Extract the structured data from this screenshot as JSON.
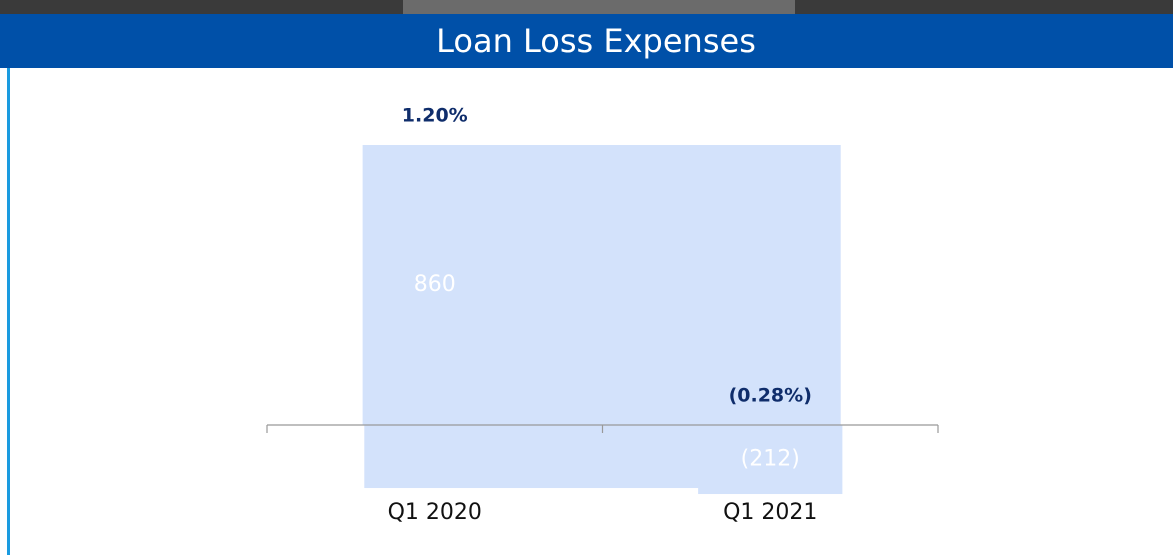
{
  "chart_data": {
    "type": "bar",
    "title": "Loan Loss Expenses",
    "categories": [
      "Q1 2020",
      "Q1 2021"
    ],
    "values": [
      860,
      -212
    ],
    "value_labels": [
      "860",
      "(212)"
    ],
    "annotations": [
      "1.20%",
      "(0.28%)"
    ],
    "color": "#d3e2fb"
  }
}
